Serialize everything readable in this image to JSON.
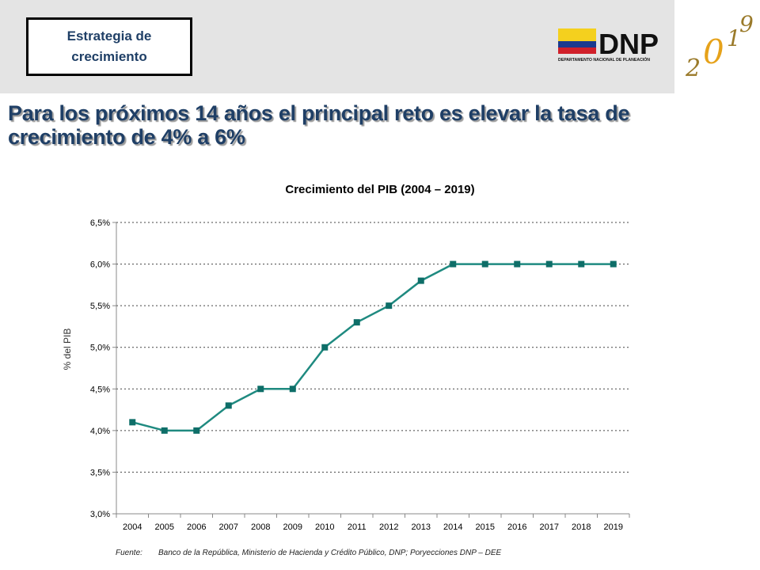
{
  "header": {
    "box_lines": [
      "Estrategia de",
      "crecimiento"
    ],
    "logo_text": "DNP",
    "logo_subtitle": "DEPARTAMENTO NACIONAL DE PLANEACIÓN",
    "year_logo_digits": [
      "2",
      "0",
      "1",
      "9"
    ],
    "flag_colors": [
      "#f4d01e",
      "#1a3a8e",
      "#d0202a"
    ],
    "accent_color": "#1f3f66"
  },
  "headline": "Para los próximos 14 años el principal reto es elevar la tasa de crecimiento de 4% a 6%",
  "chart_data": {
    "type": "line",
    "title": "Crecimiento del PIB (2004 – 2019)",
    "xlabel": "",
    "ylabel": "% del PIB",
    "x": [
      "2004",
      "2005",
      "2006",
      "2007",
      "2008",
      "2009",
      "2010",
      "2011",
      "2012",
      "2013",
      "2014",
      "2015",
      "2016",
      "2017",
      "2018",
      "2019"
    ],
    "series": [
      {
        "values": [
          4.1,
          4.0,
          4.0,
          4.3,
          4.5,
          4.5,
          5.0,
          5.3,
          5.5,
          5.8,
          6.0,
          6.0,
          6.0,
          6.0,
          6.0,
          6.0
        ]
      }
    ],
    "ylim": [
      3.0,
      6.5
    ],
    "yticks": [
      3.0,
      3.5,
      4.0,
      4.5,
      5.0,
      5.5,
      6.0,
      6.5
    ],
    "ytick_labels": [
      "3,0%",
      "3,5%",
      "4,0%",
      "4,5%",
      "5,0%",
      "5,5%",
      "6,0%",
      "6,5%"
    ],
    "grid": "horizontal-dotted",
    "line_color": "#1f8a80",
    "marker_color": "#0e6e68"
  },
  "source": {
    "label": "Fuente:",
    "text": "Banco de la República, Ministerio de Hacienda y Crédito Público, DNP; Poryecciones DNP – DEE"
  }
}
